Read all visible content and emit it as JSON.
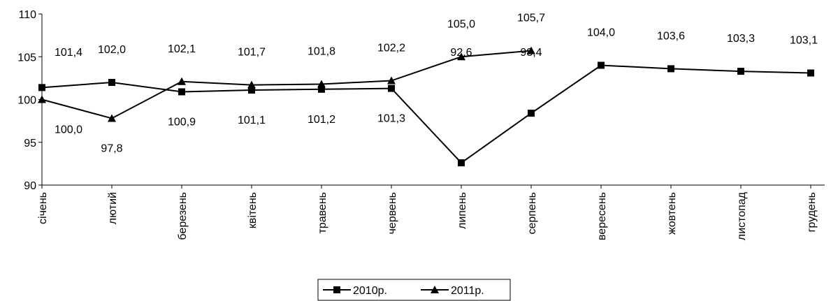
{
  "chart_data": {
    "type": "line",
    "categories": [
      "січень",
      "лютий",
      "березень",
      "квітень",
      "травень",
      "червень",
      "липень",
      "серпень",
      "вересень",
      "жовтень",
      "листопад",
      "грудень"
    ],
    "series": [
      {
        "name": "2010р.",
        "color": "#000000",
        "marker": "square",
        "values": [
          101.4,
          102.0,
          100.9,
          101.1,
          101.2,
          101.3,
          92.6,
          98.4,
          104.0,
          103.6,
          103.3,
          103.1
        ],
        "value_labels": [
          "101,4",
          "102,0",
          "100,9",
          "101,1",
          "101,2",
          "101,3",
          "92,6",
          "98,4",
          "104,0",
          "103,6",
          "103,3",
          "103,1"
        ]
      },
      {
        "name": "2011р.",
        "color": "#000000",
        "marker": "triangle",
        "values": [
          100.0,
          97.8,
          102.1,
          101.7,
          101.8,
          102.2,
          105.0,
          105.7,
          null,
          null,
          null,
          null
        ],
        "value_labels": [
          "100,0",
          "97,8",
          "102,1",
          "101,7",
          "101,8",
          "102,2",
          "105,0",
          "105,7",
          null,
          null,
          null,
          null
        ]
      }
    ],
    "ylim": [
      90,
      110
    ],
    "yticks": [
      90,
      95,
      100,
      105,
      110
    ],
    "grid": false,
    "legend": "bottom"
  }
}
